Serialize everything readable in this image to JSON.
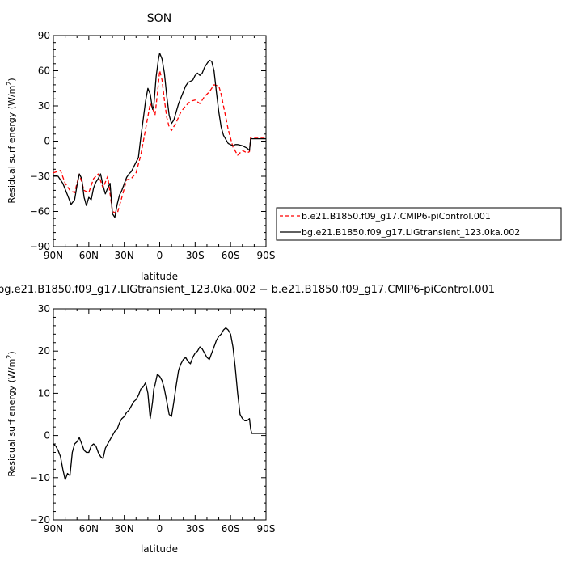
{
  "chart_data": [
    {
      "type": "line",
      "title": "SON",
      "xlabel": "latitude",
      "ylabel_main": "Residual surf energy (W/m",
      "ylabel_sup": "2",
      "ylabel_tail": ")",
      "xlim": [
        90,
        -90
      ],
      "ylim": [
        -90,
        90
      ],
      "xticks": [
        90,
        60,
        30,
        0,
        -30,
        -60,
        -90
      ],
      "xticklabels": [
        "90N",
        "60N",
        "30N",
        "0",
        "30S",
        "60S",
        "90S"
      ],
      "yticks": [
        -90,
        -60,
        -30,
        0,
        30,
        60,
        90
      ],
      "yticklabels": [
        "−90",
        "−60",
        "−30",
        "0",
        "30",
        "60",
        "90"
      ],
      "legend_position": "right",
      "series": [
        {
          "name": "b.e21.B1850.f09_g17.CMIP6-piControl.001",
          "color": "#ff0000",
          "dash": "dashed",
          "x": [
            90,
            84,
            80,
            76,
            72,
            68,
            64,
            60,
            56,
            52,
            48,
            44,
            40,
            36,
            32,
            28,
            24,
            20,
            16,
            12,
            8,
            6,
            4,
            2,
            0,
            -2,
            -4,
            -6,
            -8,
            -10,
            -14,
            -18,
            -22,
            -26,
            -30,
            -34,
            -38,
            -42,
            -46,
            -50,
            -52,
            -54,
            -58,
            -62,
            -66,
            -70,
            -74,
            -76,
            -77,
            -80,
            -84,
            -90
          ],
          "y": [
            -27,
            -25,
            -36,
            -42,
            -44,
            -28,
            -42,
            -44,
            -32,
            -28,
            -40,
            -30,
            -60,
            -62,
            -48,
            -33,
            -32,
            -27,
            -12,
            10,
            32,
            28,
            22,
            40,
            60,
            52,
            35,
            20,
            12,
            9,
            16,
            25,
            30,
            34,
            35,
            32,
            38,
            42,
            48,
            47,
            40,
            30,
            10,
            -5,
            -12,
            -8,
            -10,
            -9,
            3,
            3,
            3,
            3
          ]
        },
        {
          "name": "bg.e21.B1850.f09_g17.LIGtransient_123.0ka.002",
          "color": "#000000",
          "dash": "solid",
          "x": [
            90,
            86,
            82,
            78,
            75,
            72,
            70,
            68,
            66,
            64,
            62,
            60,
            58,
            56,
            54,
            52,
            50,
            48,
            46,
            44,
            42,
            40,
            38,
            36,
            34,
            32,
            28,
            26,
            24,
            20,
            18,
            16,
            14,
            12,
            10,
            8,
            6,
            5,
            3,
            1,
            0,
            -2,
            -4,
            -6,
            -8,
            -10,
            -12,
            -16,
            -20,
            -22,
            -24,
            -26,
            -28,
            -30,
            -32,
            -34,
            -36,
            -38,
            -40,
            -42,
            -44,
            -46,
            -48,
            -50,
            -52,
            -54,
            -58,
            -62,
            -64,
            -66,
            -70,
            -74,
            -76,
            -77,
            -80,
            -84,
            -90
          ],
          "y": [
            -29,
            -30,
            -36,
            -46,
            -54,
            -50,
            -38,
            -28,
            -32,
            -48,
            -55,
            -48,
            -50,
            -40,
            -35,
            -32,
            -28,
            -38,
            -45,
            -40,
            -36,
            -62,
            -65,
            -54,
            -46,
            -42,
            -31,
            -28,
            -26,
            -18,
            -14,
            3,
            18,
            34,
            45,
            40,
            27,
            30,
            55,
            70,
            75,
            70,
            58,
            38,
            22,
            15,
            18,
            32,
            42,
            47,
            50,
            51,
            52,
            56,
            58,
            56,
            58,
            63,
            66,
            69,
            68,
            60,
            42,
            25,
            12,
            5,
            -2,
            -4,
            -3,
            -3,
            -4,
            -6,
            -8,
            2,
            2,
            2,
            2
          ]
        }
      ]
    },
    {
      "type": "line",
      "title": "bg.e21.B1850.f09_g17.LIGtransient_123.0ka.002 − b.e21.B1850.f09_g17.CMIP6-piControl.001",
      "xlabel": "latitude",
      "ylabel_main": "Residual surf energy (W/m",
      "ylabel_sup": "2",
      "ylabel_tail": ")",
      "xlim": [
        90,
        -90
      ],
      "ylim": [
        -20,
        30
      ],
      "xticks": [
        90,
        60,
        30,
        0,
        -30,
        -60,
        -90
      ],
      "xticklabels": [
        "90N",
        "60N",
        "30N",
        "0",
        "30S",
        "60S",
        "90S"
      ],
      "yticks": [
        -20,
        -10,
        0,
        10,
        20,
        30
      ],
      "yticklabels": [
        "−20",
        "−10",
        "0",
        "10",
        "20",
        "30"
      ],
      "series": [
        {
          "color": "#000000",
          "dash": "solid",
          "x": [
            90,
            88,
            86,
            84,
            82,
            80,
            78,
            76,
            74,
            72,
            70,
            68,
            66,
            64,
            62,
            60,
            58,
            56,
            54,
            52,
            50,
            48,
            46,
            44,
            42,
            40,
            38,
            36,
            34,
            32,
            30,
            28,
            26,
            24,
            22,
            20,
            18,
            16,
            14,
            12,
            10,
            8,
            6,
            5,
            4,
            2,
            0,
            -2,
            -4,
            -6,
            -8,
            -10,
            -12,
            -14,
            -16,
            -18,
            -20,
            -22,
            -24,
            -26,
            -28,
            -30,
            -32,
            -34,
            -36,
            -38,
            -40,
            -42,
            -44,
            -46,
            -48,
            -50,
            -52,
            -54,
            -56,
            -58,
            -60,
            -62,
            -64,
            -66,
            -68,
            -70,
            -72,
            -74,
            -76,
            -77,
            -78,
            -80,
            -84,
            -90
          ],
          "y": [
            -2,
            -2.5,
            -3.5,
            -5,
            -8,
            -10.5,
            -9,
            -9.5,
            -4,
            -2,
            -1.5,
            -0.5,
            -2,
            -3.5,
            -4,
            -4,
            -2.5,
            -2,
            -2.5,
            -4,
            -5,
            -5.5,
            -3,
            -2,
            -1,
            0,
            1,
            1.5,
            3,
            4,
            4.5,
            5.5,
            6,
            7,
            8,
            8.5,
            9.5,
            11,
            11.5,
            12.5,
            10,
            4,
            8,
            11,
            12,
            14.5,
            14,
            13,
            11,
            8,
            5,
            4.5,
            8,
            12,
            15.5,
            17,
            18,
            18.5,
            17.5,
            17,
            18.5,
            19.5,
            20,
            21,
            20.5,
            19.5,
            18.5,
            18,
            19.5,
            21,
            22.5,
            23.5,
            24,
            25,
            25.5,
            25,
            24,
            21,
            16,
            10,
            5,
            4,
            3.5,
            3.5,
            4,
            1.5,
            0.5,
            0.5,
            0.5,
            0.5
          ]
        }
      ]
    }
  ],
  "legend": {
    "entries": [
      "b.e21.B1850.f09_g17.CMIP6-piControl.001",
      "bg.e21.B1850.f09_g17.LIGtransient_123.0ka.002"
    ]
  }
}
